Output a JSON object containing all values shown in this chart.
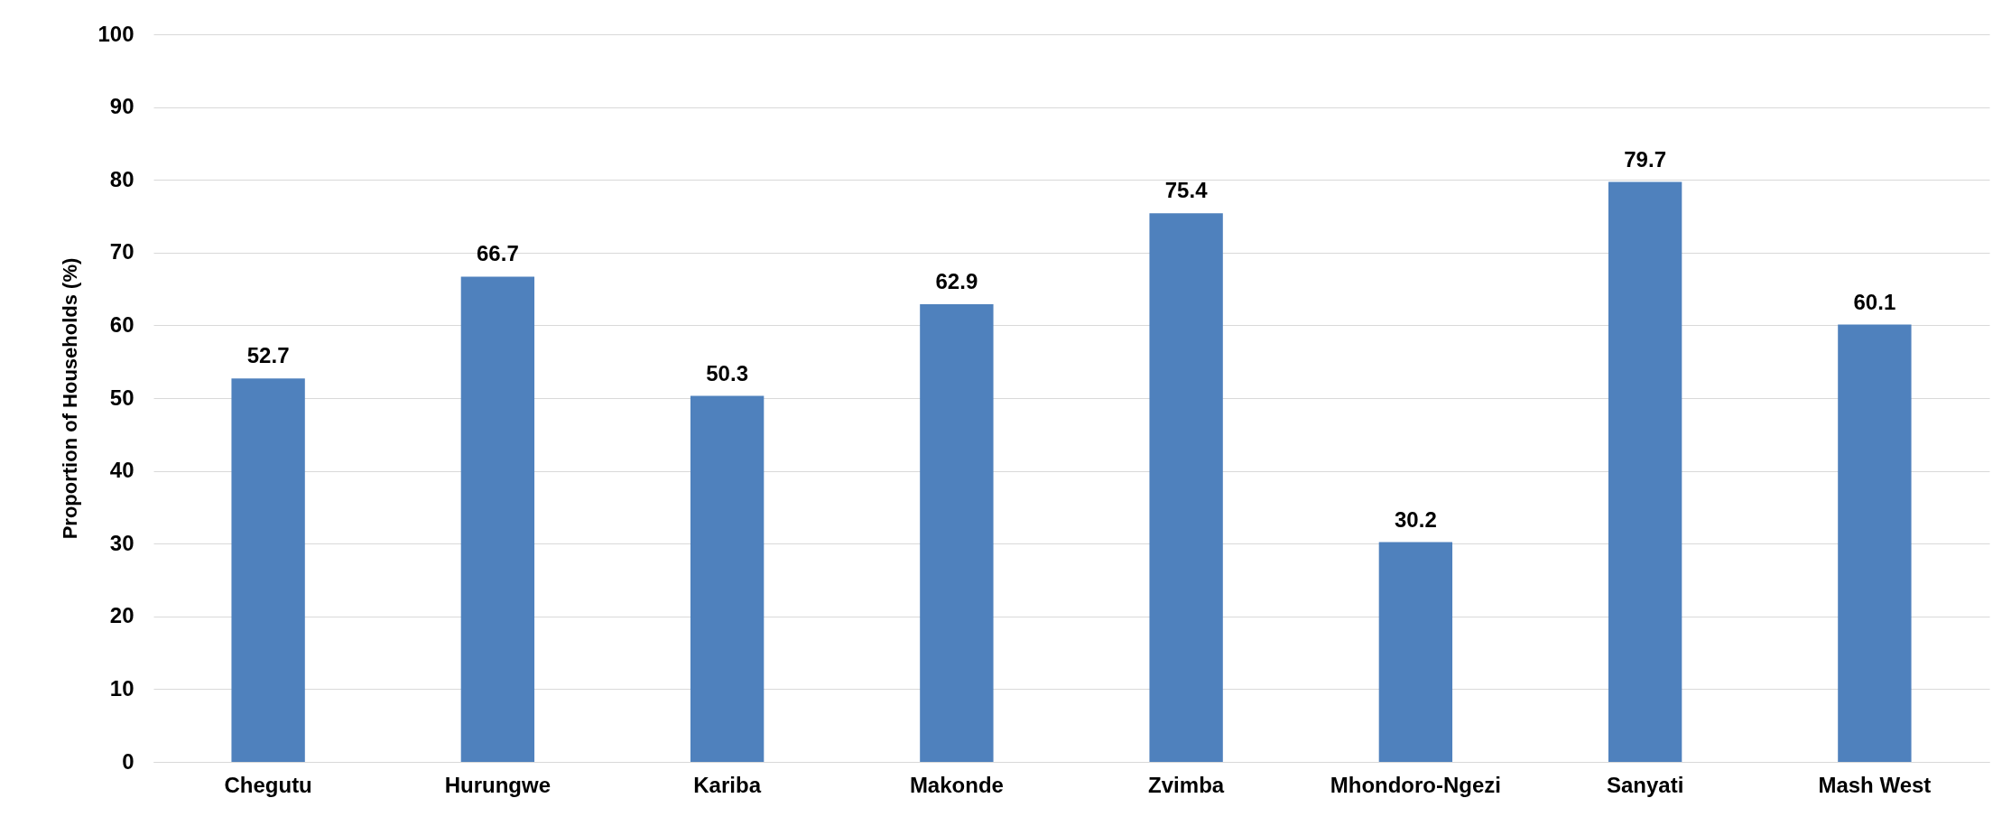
{
  "chart_data": {
    "type": "bar",
    "ylabel": "Proportion of Households (%)",
    "categories": [
      "Chegutu",
      "Hurungwe",
      "Kariba",
      "Makonde",
      "Zvimba",
      "Mhondoro-Ngezi",
      "Sanyati",
      "Mash West"
    ],
    "values": [
      52.7,
      66.7,
      50.3,
      62.9,
      75.4,
      30.2,
      79.7,
      60.1
    ],
    "color": "#4f81bd",
    "ylim": [
      0,
      100
    ],
    "yticks": [
      0,
      10,
      20,
      30,
      40,
      50,
      60,
      70,
      80,
      90,
      100
    ],
    "grid": "y",
    "data_labels": true
  }
}
